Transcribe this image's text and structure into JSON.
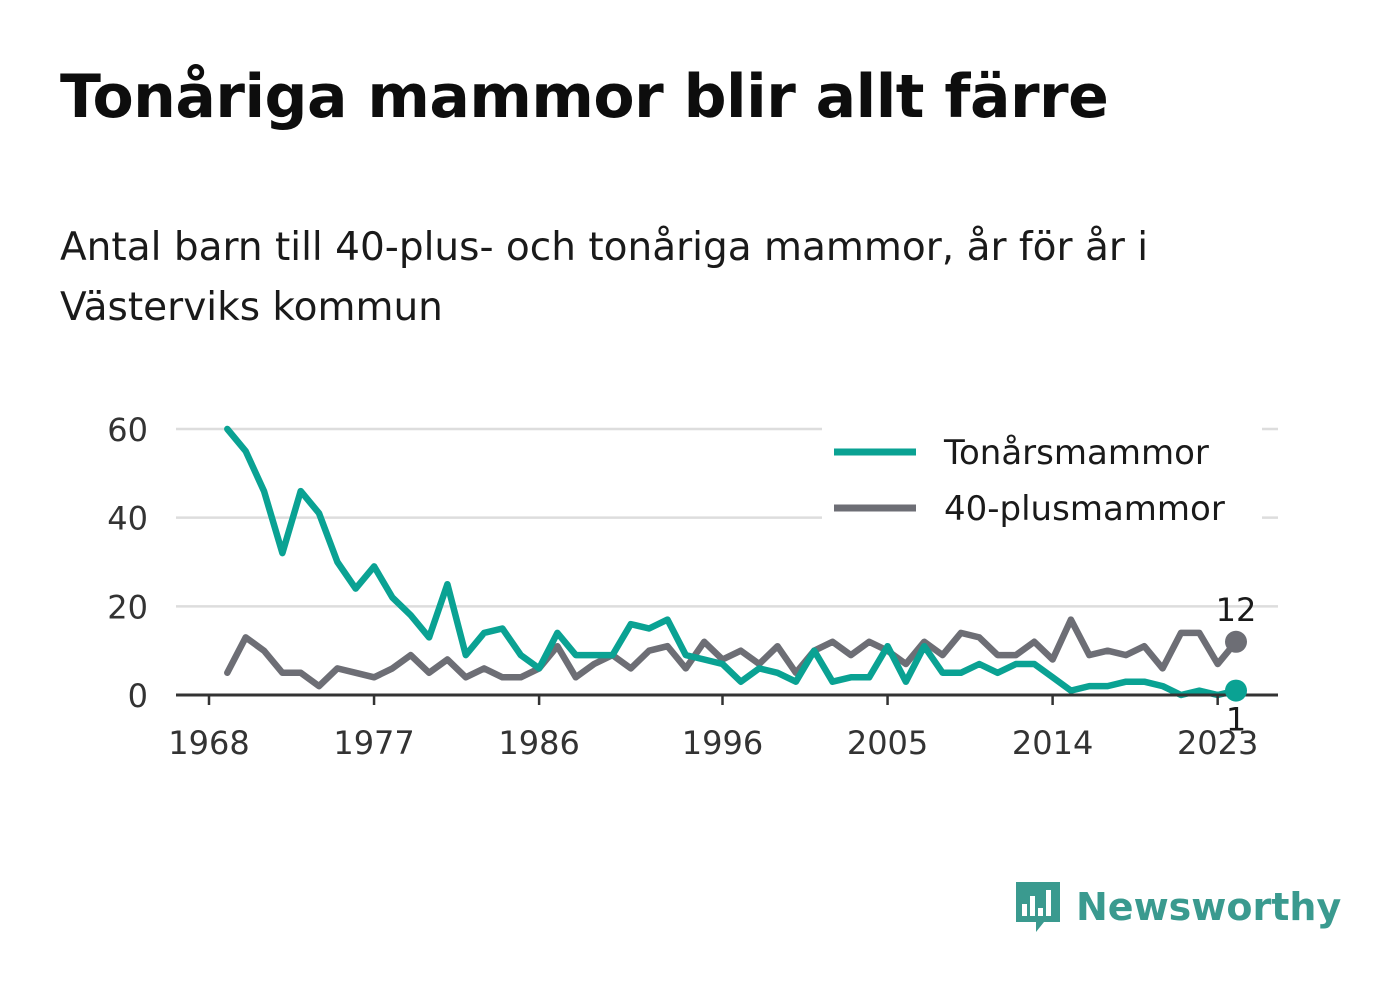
{
  "title": "Tonåriga mammor blir allt färre",
  "subtitle": "Antal barn till 40-plus- och tonåriga mammor, år för år i Västerviks kommun",
  "brand": {
    "name": "Newsworthy",
    "icon": "newsworthy-logo-icon",
    "color": "#3a9a8f"
  },
  "chart_data": {
    "type": "line",
    "x": [
      1969,
      1970,
      1971,
      1972,
      1973,
      1974,
      1975,
      1976,
      1977,
      1978,
      1979,
      1980,
      1981,
      1982,
      1983,
      1984,
      1985,
      1986,
      1987,
      1988,
      1989,
      1990,
      1991,
      1992,
      1993,
      1994,
      1995,
      1996,
      1997,
      1998,
      1999,
      2000,
      2001,
      2002,
      2003,
      2004,
      2005,
      2006,
      2007,
      2008,
      2009,
      2010,
      2011,
      2012,
      2013,
      2014,
      2015,
      2016,
      2017,
      2018,
      2019,
      2020,
      2021,
      2022,
      2023,
      2024
    ],
    "series": [
      {
        "name": "Tonårsmammor",
        "color": "#0aa293",
        "values": [
          60,
          55,
          46,
          32,
          46,
          41,
          30,
          24,
          29,
          22,
          18,
          13,
          25,
          9,
          14,
          15,
          9,
          6,
          14,
          9,
          9,
          9,
          16,
          15,
          17,
          9,
          8,
          7,
          3,
          6,
          5,
          3,
          10,
          3,
          4,
          4,
          11,
          3,
          11,
          5,
          5,
          7,
          5,
          7,
          7,
          4,
          1,
          2,
          2,
          3,
          3,
          2,
          0,
          1,
          0,
          1
        ],
        "end_label": "1"
      },
      {
        "name": "40-plusmammor",
        "color": "#6d6e75",
        "values": [
          5,
          13,
          10,
          5,
          5,
          2,
          6,
          5,
          4,
          6,
          9,
          5,
          8,
          4,
          6,
          4,
          4,
          6,
          11,
          4,
          7,
          9,
          6,
          10,
          11,
          6,
          12,
          8,
          10,
          7,
          11,
          5,
          10,
          12,
          9,
          12,
          10,
          7,
          12,
          9,
          14,
          13,
          9,
          9,
          12,
          8,
          17,
          9,
          10,
          9,
          11,
          6,
          14,
          14,
          7,
          12
        ],
        "end_label": "12"
      }
    ],
    "xticks": [
      1968,
      1977,
      1986,
      1996,
      2005,
      2014,
      2023
    ],
    "xtick_labels": [
      "1968",
      "1977",
      "1986",
      "1996",
      "2005",
      "2014",
      "2023"
    ],
    "yticks": [
      0,
      20,
      40,
      60
    ],
    "ytick_labels": [
      "0",
      "20",
      "40",
      "60"
    ],
    "xlim": [
      1968,
      2024
    ],
    "ylim": [
      0,
      60
    ],
    "grid": "horizontal",
    "legend": "top-right",
    "xlabel": "",
    "ylabel": ""
  }
}
